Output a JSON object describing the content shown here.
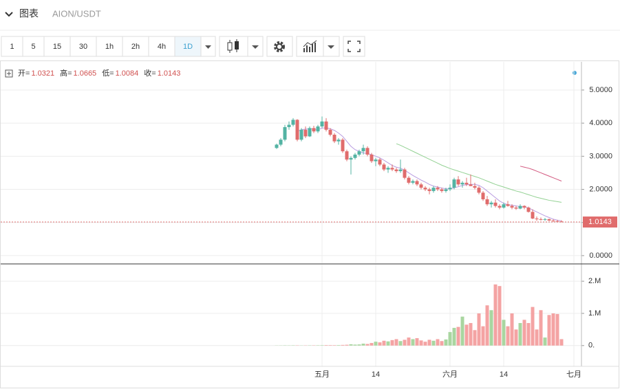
{
  "header": {
    "title": "图表",
    "symbol": "AION/USDT"
  },
  "toolbar": {
    "intervals": [
      "1",
      "5",
      "15",
      "30",
      "1h",
      "2h",
      "4h",
      "1D"
    ]
  },
  "chart_data": {
    "type": "candlestick",
    "legend_labels": [
      "开=",
      "高=",
      "低=",
      "收="
    ],
    "categories": [
      null,
      null,
      null,
      null,
      null,
      null,
      null,
      null,
      null,
      null,
      null,
      "五月",
      null,
      null,
      null,
      null,
      null,
      null,
      null,
      null,
      null,
      null,
      null,
      null,
      "14",
      null,
      null,
      null,
      null,
      null,
      null,
      null,
      null,
      null,
      null,
      null,
      null,
      null,
      null,
      null,
      null,
      null,
      "六月",
      null,
      null,
      null,
      null,
      null,
      null,
      null,
      null,
      null,
      null,
      null,
      null,
      "14",
      null,
      null,
      null,
      null,
      null,
      null,
      null,
      null,
      null,
      null,
      null,
      null,
      null,
      null,
      null,
      null,
      "七月"
    ],
    "open": [
      3.25,
      3.35,
      3.5,
      3.88,
      3.95,
      4.1,
      3.5,
      3.8,
      3.6,
      3.85,
      3.75,
      3.9,
      4.05,
      3.8,
      3.65,
      3.45,
      3.5,
      3.15,
      2.9,
      2.95,
      3.05,
      3.15,
      3.25,
      3.05,
      2.85,
      2.9,
      2.75,
      2.6,
      2.65,
      2.6,
      2.55,
      2.6,
      2.35,
      2.2,
      2.25,
      2.15,
      2.05,
      2.0,
      1.95,
      2.05,
      2.0,
      1.95,
      2.0,
      2.05,
      2.3,
      2.15,
      2.2,
      2.15,
      2.1,
      2.05,
      1.9,
      1.7,
      1.55,
      1.6,
      1.5,
      1.45,
      1.55,
      1.5,
      1.45,
      1.42,
      1.5,
      1.45,
      1.32,
      1.12,
      1.1,
      1.08,
      1.1,
      1.06,
      1.04,
      1.0321,
      null,
      null,
      null
    ],
    "high": [
      3.38,
      3.55,
      3.95,
      4.05,
      4.15,
      4.12,
      3.85,
      3.9,
      3.9,
      3.92,
      3.95,
      4.2,
      4.15,
      3.85,
      3.7,
      3.55,
      3.55,
      3.2,
      3.0,
      3.1,
      3.2,
      3.35,
      3.3,
      3.1,
      2.95,
      2.95,
      2.8,
      2.7,
      2.75,
      2.65,
      2.9,
      2.65,
      2.4,
      2.3,
      2.3,
      2.2,
      2.1,
      2.05,
      2.1,
      2.1,
      2.05,
      2.05,
      2.15,
      2.35,
      2.4,
      2.25,
      2.35,
      2.45,
      2.2,
      2.1,
      1.95,
      1.8,
      1.65,
      1.7,
      1.55,
      1.6,
      1.65,
      1.55,
      1.5,
      1.55,
      1.52,
      1.48,
      1.4,
      1.18,
      1.15,
      1.14,
      1.12,
      1.1,
      1.08,
      1.0665,
      null,
      null,
      null
    ],
    "low": [
      3.22,
      3.3,
      3.45,
      3.8,
      3.9,
      3.45,
      3.45,
      3.55,
      3.58,
      3.7,
      3.7,
      3.85,
      3.75,
      3.6,
      3.4,
      3.35,
      3.1,
      2.85,
      2.45,
      2.9,
      3.0,
      3.05,
      3.0,
      2.8,
      2.7,
      2.7,
      2.55,
      2.5,
      2.55,
      2.5,
      2.5,
      2.3,
      2.15,
      2.15,
      2.1,
      2.0,
      1.95,
      1.85,
      1.9,
      1.95,
      1.9,
      1.9,
      1.95,
      2.0,
      2.1,
      2.05,
      2.1,
      2.1,
      2.0,
      1.85,
      1.65,
      1.5,
      1.45,
      1.45,
      1.4,
      1.42,
      1.48,
      1.4,
      1.38,
      1.4,
      1.4,
      1.3,
      1.1,
      1.05,
      1.06,
      1.05,
      1.04,
      1.02,
      1.01,
      1.0084,
      null,
      null,
      null
    ],
    "close": [
      3.35,
      3.5,
      3.88,
      3.95,
      4.1,
      3.5,
      3.8,
      3.6,
      3.85,
      3.75,
      3.9,
      4.05,
      3.8,
      3.65,
      3.45,
      3.5,
      3.15,
      2.9,
      2.95,
      3.05,
      3.15,
      3.25,
      3.05,
      2.85,
      2.9,
      2.75,
      2.6,
      2.65,
      2.6,
      2.55,
      2.6,
      2.35,
      2.2,
      2.25,
      2.15,
      2.05,
      2.0,
      1.95,
      2.05,
      2.0,
      1.95,
      2.0,
      2.05,
      2.3,
      2.15,
      2.2,
      2.15,
      2.1,
      2.05,
      1.9,
      1.7,
      1.55,
      1.6,
      1.5,
      1.45,
      1.55,
      1.5,
      1.45,
      1.42,
      1.5,
      1.45,
      1.32,
      1.12,
      1.1,
      1.08,
      1.1,
      1.06,
      1.04,
      1.0321,
      1.0143,
      null,
      null,
      null
    ],
    "volume": [
      5000,
      6000,
      8000,
      7000,
      9000,
      8000,
      6000,
      7000,
      8000,
      9000,
      10000,
      12000,
      15000,
      14000,
      13000,
      15000,
      20000,
      25000,
      40000,
      30000,
      35000,
      60000,
      50000,
      80000,
      120000,
      100000,
      150000,
      130000,
      170000,
      200000,
      140000,
      180000,
      250000,
      200000,
      230000,
      160000,
      120000,
      180000,
      150000,
      200000,
      140000,
      190000,
      420000,
      550000,
      580000,
      900000,
      650000,
      700000,
      480000,
      1000000,
      600000,
      1250000,
      1100000,
      1900000,
      1850000,
      800000,
      600000,
      1000000,
      500000,
      700000,
      800000,
      700000,
      1200000,
      500000,
      1100000,
      250000,
      950000,
      1000000,
      980000,
      200000,
      null,
      null,
      null
    ],
    "ma_lines": [
      {
        "color": "#b89be0",
        "values": [
          null,
          null,
          null,
          null,
          null,
          3.75,
          3.8,
          3.82,
          3.83,
          3.82,
          3.8,
          3.85,
          3.86,
          3.83,
          3.78,
          3.7,
          3.6,
          3.45,
          3.3,
          3.2,
          3.15,
          3.1,
          3.08,
          3.05,
          3.0,
          2.95,
          2.88,
          2.8,
          2.72,
          2.67,
          2.64,
          2.58,
          2.5,
          2.42,
          2.35,
          2.28,
          2.22,
          2.15,
          2.1,
          2.07,
          2.04,
          2.02,
          2.01,
          2.05,
          2.08,
          2.12,
          2.14,
          2.15,
          2.15,
          2.12,
          2.05,
          1.95,
          1.85,
          1.75,
          1.65,
          1.58,
          1.54,
          1.52,
          1.5,
          1.48,
          1.47,
          1.44,
          1.38,
          1.32,
          1.26,
          1.2,
          1.15,
          1.1,
          1.07,
          1.05,
          null,
          null,
          null
        ]
      },
      {
        "color": "#93d193",
        "values": [
          null,
          null,
          null,
          null,
          null,
          null,
          null,
          null,
          null,
          null,
          null,
          null,
          null,
          null,
          null,
          null,
          null,
          null,
          null,
          null,
          null,
          null,
          null,
          null,
          null,
          null,
          null,
          null,
          null,
          3.38,
          3.33,
          3.27,
          3.21,
          3.15,
          3.09,
          3.03,
          2.97,
          2.91,
          2.85,
          2.79,
          2.73,
          2.68,
          2.63,
          2.59,
          2.55,
          2.51,
          2.47,
          2.43,
          2.39,
          2.35,
          2.3,
          2.25,
          2.2,
          2.15,
          2.11,
          2.07,
          2.03,
          1.99,
          1.95,
          1.92,
          1.88,
          1.84,
          1.8,
          1.76,
          1.73,
          1.7,
          1.67,
          1.65,
          1.63,
          1.61,
          null,
          null,
          null
        ]
      },
      {
        "color": "#d2577e",
        "values": [
          null,
          null,
          null,
          null,
          null,
          null,
          null,
          null,
          null,
          null,
          null,
          null,
          null,
          null,
          null,
          null,
          null,
          null,
          null,
          null,
          null,
          null,
          null,
          null,
          null,
          null,
          null,
          null,
          null,
          null,
          null,
          null,
          null,
          null,
          null,
          null,
          null,
          null,
          null,
          null,
          null,
          null,
          null,
          null,
          null,
          null,
          null,
          null,
          null,
          null,
          null,
          null,
          null,
          null,
          null,
          null,
          null,
          null,
          null,
          2.7,
          2.67,
          2.64,
          2.6,
          2.55,
          2.5,
          2.45,
          2.4,
          2.35,
          2.3,
          2.25,
          null,
          null,
          null
        ]
      }
    ],
    "up_color": "#53b3a3",
    "down_color": "#e06c6c",
    "volume_up_color": "#a9d6a0",
    "volume_down_color": "#f4a3a3",
    "ylim": [
      -0.23,
      5.85
    ],
    "yticks": [
      {
        "value": 0,
        "label": "0.0000"
      },
      {
        "value": 1,
        "label": "1.0000"
      },
      {
        "value": 2,
        "label": "2.0000"
      },
      {
        "value": 3,
        "label": "3.0000"
      },
      {
        "value": 4,
        "label": "4.0000"
      },
      {
        "value": 5,
        "label": "5.0000"
      }
    ],
    "y2lim": [
      -645000,
      2516000
    ],
    "y2ticks": [
      {
        "value": 0,
        "label": "0."
      },
      {
        "value": 1000000,
        "label": "1.M"
      },
      {
        "value": 2000000,
        "label": "2.M"
      }
    ],
    "grid": true
  }
}
